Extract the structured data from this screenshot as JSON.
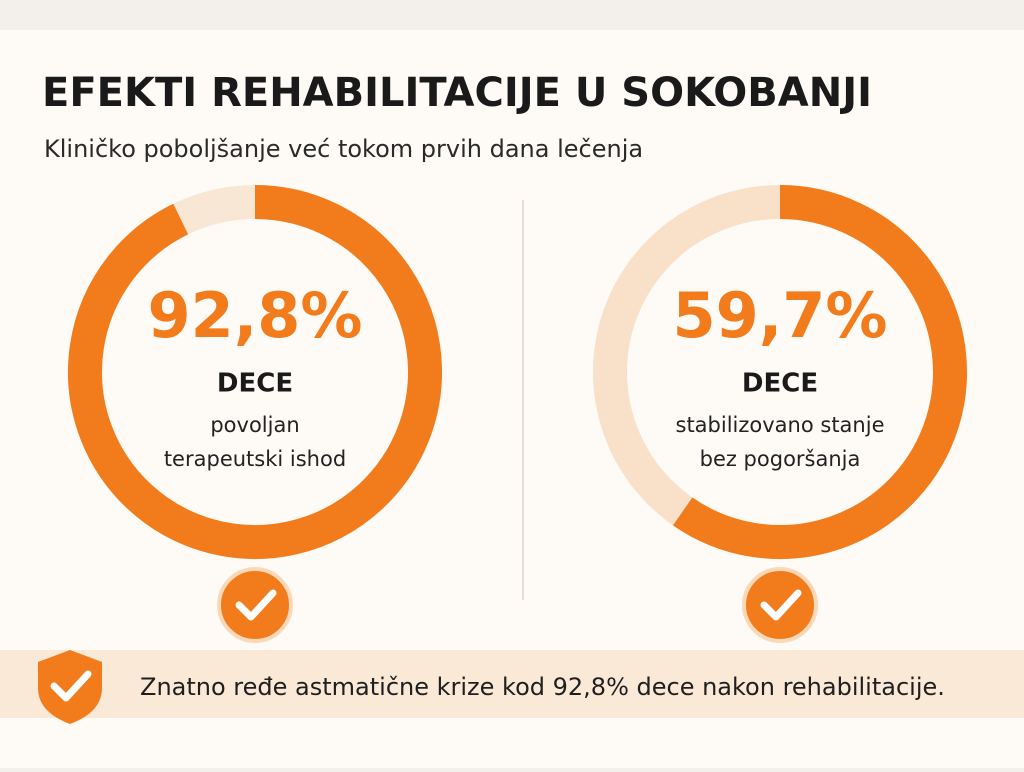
{
  "header": {
    "title": "EFEKTI REHABILITACIJE U SOKOBANJI",
    "subtitle": "Kliničko poboljšanje već tokom prvih dana lečenja"
  },
  "chart_data": [
    {
      "type": "donut",
      "values": [
        92.8
      ],
      "value_labels": [
        "92,8%"
      ],
      "label": "DECE",
      "description": [
        "povoljan",
        "terapeutski ishod"
      ],
      "color": "#f27b1c",
      "track_color": "#f8e7d5"
    },
    {
      "type": "donut",
      "values": [
        59.7
      ],
      "value_labels": [
        "59,7%"
      ],
      "label": "DECE",
      "description": [
        "stabilizovano stanje",
        "bez pogoršanja"
      ],
      "color": "#f27b1c",
      "track_color": "#f8e1c8"
    }
  ],
  "footer": {
    "text": "Znatno ređe astmatične krize kod 92,8% dece nakon rehabilitacije."
  }
}
